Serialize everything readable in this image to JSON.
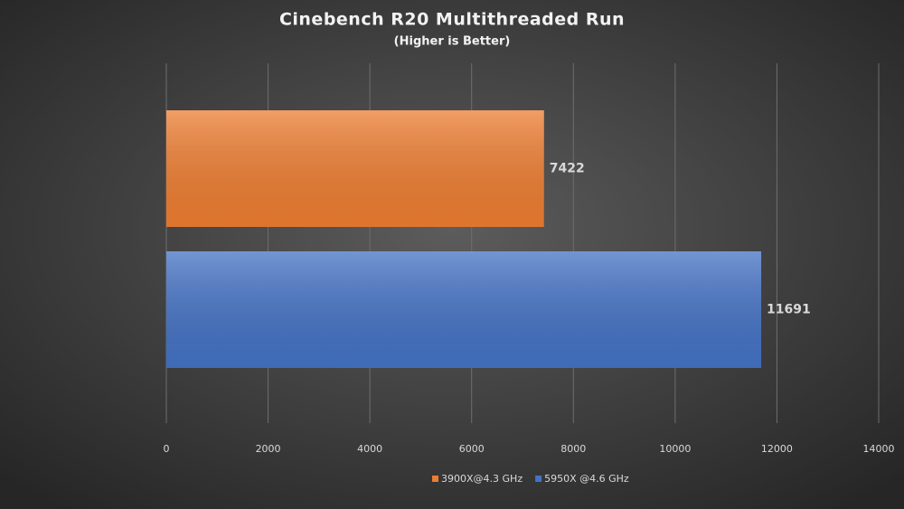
{
  "chart_data": {
    "type": "hbar",
    "title": "Cinebench R20 Multithreaded Run",
    "subtitle": "(Higher is Better)",
    "categories": [
      null
    ],
    "series": [
      {
        "name": "3900X@4.3 GHz",
        "color": "#ed7d31",
        "values": [
          7422
        ]
      },
      {
        "name": "5950X @4.6 GHz",
        "color": "#4472c4",
        "values": [
          11691
        ]
      }
    ],
    "xlim": [
      0,
      14000
    ],
    "xticks": [
      0,
      2000,
      4000,
      6000,
      8000,
      10000,
      12000,
      14000
    ],
    "grid": true,
    "legend": "bottom"
  }
}
